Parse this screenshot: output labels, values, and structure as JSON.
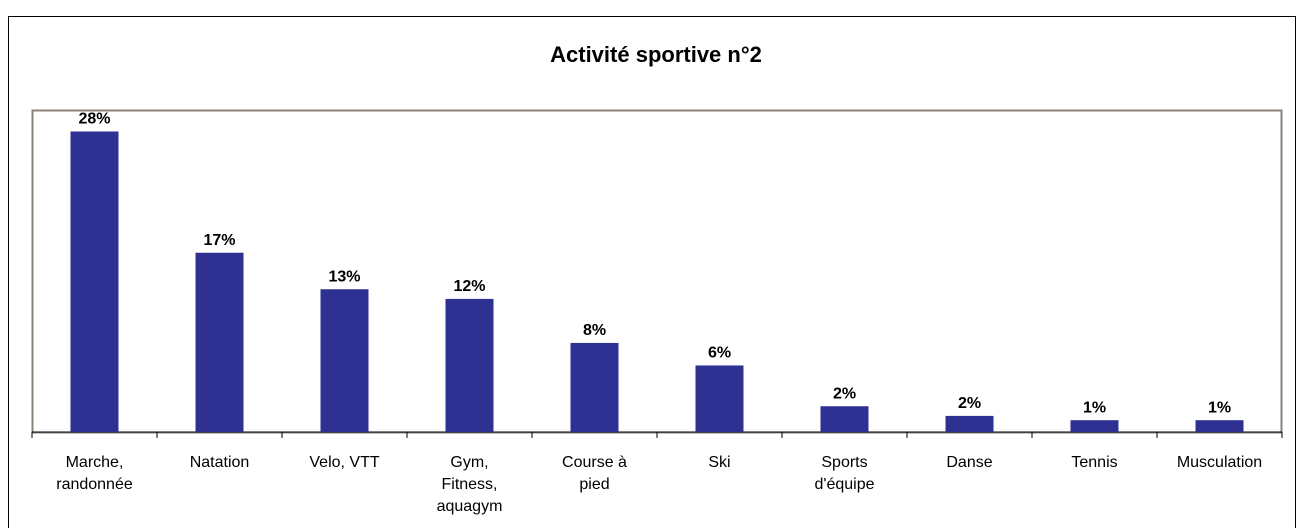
{
  "chart_data": {
    "type": "bar",
    "title": "Activité sportive n°2",
    "categories": [
      "Marche, randonnée",
      "Natation",
      "Velo, VTT",
      "Gym, Fitness, aquagym",
      "Course à pied",
      "Ski",
      "Sports d'équipe",
      "Danse",
      "Tennis",
      "Musculation"
    ],
    "values": [
      28,
      16.7,
      13.3,
      12.4,
      8.3,
      6.2,
      2.4,
      1.5,
      1.1,
      1.1
    ],
    "value_labels": [
      "28%",
      "17%",
      "13%",
      "12%",
      "8%",
      "6%",
      "2%",
      "2%",
      "1%",
      "1%"
    ],
    "color": "#2e3192",
    "ylim": [
      0,
      30
    ]
  }
}
